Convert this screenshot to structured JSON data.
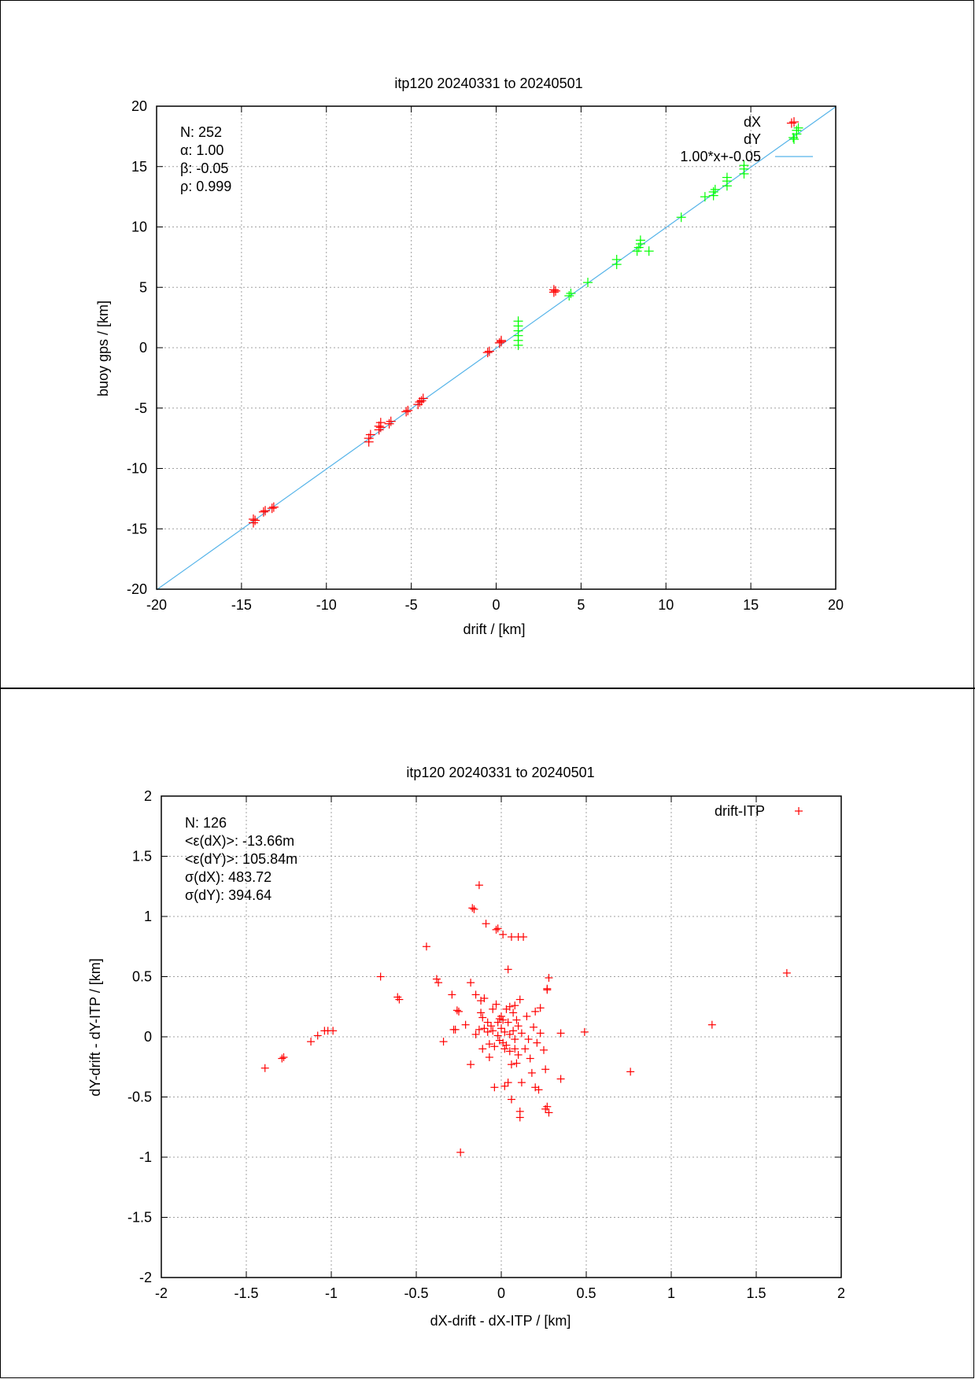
{
  "chart_data": [
    {
      "type": "scatter",
      "title": "itp120 20240331 to 20240501",
      "xlabel": "drift / [km]",
      "ylabel": "buoy gps / [km]",
      "xlim": [
        -20,
        20
      ],
      "ylim": [
        -20,
        20
      ],
      "xticks": [
        -20,
        -15,
        -10,
        -5,
        0,
        5,
        10,
        15,
        20
      ],
      "yticks": [
        -20,
        -15,
        -10,
        -5,
        0,
        5,
        10,
        15,
        20
      ],
      "grid": true,
      "legend_position": "top-right",
      "stats": [
        "N: 252",
        "α: 1.00",
        "β: -0.05",
        "ρ: 0.999"
      ],
      "series": [
        {
          "name": "dX",
          "marker": "+",
          "color": "#ff0000",
          "points": [
            [
              -14.3,
              -14.5
            ],
            [
              -14.3,
              -14.2
            ],
            [
              -14.2,
              -14.3
            ],
            [
              -13.7,
              -13.6
            ],
            [
              -13.6,
              -13.5
            ],
            [
              -13.2,
              -13.3
            ],
            [
              -13.1,
              -13.2
            ],
            [
              -7.5,
              -7.8
            ],
            [
              -7.5,
              -7.5
            ],
            [
              -7.4,
              -7.2
            ],
            [
              -6.9,
              -6.8
            ],
            [
              -6.9,
              -6.5
            ],
            [
              -6.8,
              -6.2
            ],
            [
              -6.8,
              -6.6
            ],
            [
              -6.3,
              -6.3
            ],
            [
              -6.2,
              -6.1
            ],
            [
              -5.3,
              -5.3
            ],
            [
              -5.2,
              -5.2
            ],
            [
              -4.6,
              -4.7
            ],
            [
              -4.5,
              -4.5
            ],
            [
              -4.4,
              -4.4
            ],
            [
              -4.3,
              -4.2
            ],
            [
              -0.5,
              -0.4
            ],
            [
              -0.4,
              -0.3
            ],
            [
              0.2,
              0.4
            ],
            [
              0.3,
              0.6
            ],
            [
              0.3,
              0.5
            ],
            [
              3.4,
              4.6
            ],
            [
              3.4,
              4.8
            ],
            [
              3.5,
              4.7
            ],
            [
              17.4,
              18.6
            ]
          ]
        },
        {
          "name": "dY",
          "marker": "+",
          "color": "#00ff00",
          "points": [
            [
              1.3,
              0.2
            ],
            [
              1.3,
              0.6
            ],
            [
              1.3,
              1.0
            ],
            [
              1.3,
              1.4
            ],
            [
              1.3,
              1.8
            ],
            [
              1.3,
              2.2
            ],
            [
              4.3,
              4.3
            ],
            [
              4.4,
              4.5
            ],
            [
              5.4,
              5.4
            ],
            [
              7.1,
              6.9
            ],
            [
              7.1,
              7.3
            ],
            [
              8.3,
              8.0
            ],
            [
              8.4,
              8.3
            ],
            [
              8.5,
              8.6
            ],
            [
              8.5,
              8.9
            ],
            [
              9.0,
              8.0
            ],
            [
              10.9,
              10.8
            ],
            [
              12.3,
              12.5
            ],
            [
              12.8,
              12.6
            ],
            [
              12.8,
              12.9
            ],
            [
              12.9,
              13.1
            ],
            [
              13.6,
              13.4
            ],
            [
              13.6,
              13.8
            ],
            [
              13.6,
              14.1
            ],
            [
              14.6,
              14.4
            ],
            [
              14.6,
              14.8
            ],
            [
              14.6,
              15.1
            ],
            [
              17.5,
              17.4
            ],
            [
              17.7,
              17.7
            ],
            [
              17.7,
              18.0
            ],
            [
              17.8,
              18.2
            ]
          ]
        }
      ],
      "fit_line": {
        "name": "1.00*x+-0.05",
        "slope": 1.0,
        "intercept": -0.05,
        "color": "#56b4e9"
      }
    },
    {
      "type": "scatter",
      "title": "itp120 20240331 to 20240501",
      "xlabel": "dX-drift - dX-ITP / [km]",
      "ylabel": "dY-drift - dY-ITP / [km]",
      "xlim": [
        -2,
        2
      ],
      "ylim": [
        -2,
        2
      ],
      "xticks": [
        -2,
        -1.5,
        -1,
        -0.5,
        0,
        0.5,
        1,
        1.5,
        2
      ],
      "yticks": [
        -2,
        -1.5,
        -1,
        -0.5,
        0,
        0.5,
        1,
        1.5,
        2
      ],
      "grid": true,
      "legend_position": "top-right",
      "stats": [
        "N: 126",
        "<ε(dX)>:  -13.66m",
        "<ε(dY)>: 105.84m",
        "σ(dX):  483.72",
        "σ(dY):  394.64"
      ],
      "series": [
        {
          "name": "drift-ITP",
          "marker": "+",
          "color": "#ff0000",
          "points": [
            [
              -1.39,
              -0.26
            ],
            [
              -1.29,
              -0.18
            ],
            [
              -1.28,
              -0.17
            ],
            [
              -1.12,
              -0.04
            ],
            [
              -1.08,
              0.01
            ],
            [
              -1.04,
              0.05
            ],
            [
              -1.02,
              0.05
            ],
            [
              -0.99,
              0.05
            ],
            [
              -0.71,
              0.5
            ],
            [
              -0.61,
              0.33
            ],
            [
              -0.6,
              0.31
            ],
            [
              -0.44,
              0.75
            ],
            [
              -0.38,
              0.48
            ],
            [
              -0.37,
              0.45
            ],
            [
              -0.34,
              -0.04
            ],
            [
              -0.29,
              0.35
            ],
            [
              -0.28,
              0.06
            ],
            [
              -0.27,
              0.06
            ],
            [
              -0.26,
              0.22
            ],
            [
              -0.25,
              0.21
            ],
            [
              -0.24,
              -0.96
            ],
            [
              -0.21,
              0.1
            ],
            [
              -0.18,
              0.45
            ],
            [
              -0.18,
              -0.23
            ],
            [
              -0.17,
              1.07
            ],
            [
              -0.16,
              1.06
            ],
            [
              -0.15,
              0.35
            ],
            [
              -0.15,
              0.02
            ],
            [
              -0.13,
              1.26
            ],
            [
              -0.13,
              0.06
            ],
            [
              -0.12,
              0.3
            ],
            [
              -0.12,
              0.2
            ],
            [
              -0.11,
              0.16
            ],
            [
              -0.11,
              -0.1
            ],
            [
              -0.1,
              0.32
            ],
            [
              -0.1,
              0.07
            ],
            [
              -0.09,
              0.94
            ],
            [
              -0.08,
              0.12
            ],
            [
              -0.08,
              0.04
            ],
            [
              -0.07,
              -0.06
            ],
            [
              -0.07,
              -0.17
            ],
            [
              -0.06,
              0.09
            ],
            [
              -0.05,
              0.23
            ],
            [
              -0.05,
              0.05
            ],
            [
              -0.04,
              -0.08
            ],
            [
              -0.04,
              -0.42
            ],
            [
              -0.03,
              0.89
            ],
            [
              -0.03,
              0.27
            ],
            [
              -0.02,
              0.9
            ],
            [
              -0.02,
              0.12
            ],
            [
              -0.02,
              0.01
            ],
            [
              -0.01,
              0.15
            ],
            [
              -0.01,
              -0.03
            ],
            [
              0.0,
              0.17
            ],
            [
              0.0,
              0.07
            ],
            [
              0.01,
              0.85
            ],
            [
              0.01,
              0.14
            ],
            [
              0.01,
              -0.05
            ],
            [
              0.02,
              0.04
            ],
            [
              0.02,
              -0.1
            ],
            [
              0.02,
              -0.41
            ],
            [
              0.03,
              0.23
            ],
            [
              0.03,
              -0.07
            ],
            [
              0.04,
              0.56
            ],
            [
              0.04,
              0.12
            ],
            [
              0.04,
              -0.38
            ],
            [
              0.05,
              0.25
            ],
            [
              0.05,
              0.02
            ],
            [
              0.05,
              -0.12
            ],
            [
              0.06,
              0.83
            ],
            [
              0.06,
              -0.23
            ],
            [
              0.06,
              -0.52
            ],
            [
              0.07,
              0.2
            ],
            [
              0.07,
              0.05
            ],
            [
              0.08,
              0.26
            ],
            [
              0.08,
              -0.02
            ],
            [
              0.08,
              -0.1
            ],
            [
              0.09,
              0.14
            ],
            [
              0.09,
              -0.22
            ],
            [
              0.1,
              0.83
            ],
            [
              0.1,
              0.09
            ],
            [
              0.1,
              -0.15
            ],
            [
              0.11,
              0.31
            ],
            [
              0.11,
              -0.62
            ],
            [
              0.11,
              -0.67
            ],
            [
              0.12,
              0.03
            ],
            [
              0.12,
              -0.38
            ],
            [
              0.13,
              0.83
            ],
            [
              0.14,
              -0.1
            ],
            [
              0.15,
              0.17
            ],
            [
              0.16,
              -0.02
            ],
            [
              0.17,
              -0.18
            ],
            [
              0.18,
              -0.3
            ],
            [
              0.19,
              0.08
            ],
            [
              0.2,
              0.21
            ],
            [
              0.2,
              -0.42
            ],
            [
              0.21,
              -0.05
            ],
            [
              0.22,
              -0.44
            ],
            [
              0.23,
              0.24
            ],
            [
              0.23,
              0.03
            ],
            [
              0.25,
              -0.11
            ],
            [
              0.26,
              -0.27
            ],
            [
              0.26,
              -0.6
            ],
            [
              0.27,
              0.4
            ],
            [
              0.27,
              0.39
            ],
            [
              0.27,
              -0.58
            ],
            [
              0.28,
              0.49
            ],
            [
              0.28,
              -0.63
            ],
            [
              0.35,
              0.03
            ],
            [
              0.35,
              -0.35
            ],
            [
              0.49,
              0.04
            ],
            [
              0.76,
              -0.29
            ],
            [
              1.24,
              0.1
            ],
            [
              1.68,
              0.53
            ]
          ]
        }
      ]
    }
  ]
}
